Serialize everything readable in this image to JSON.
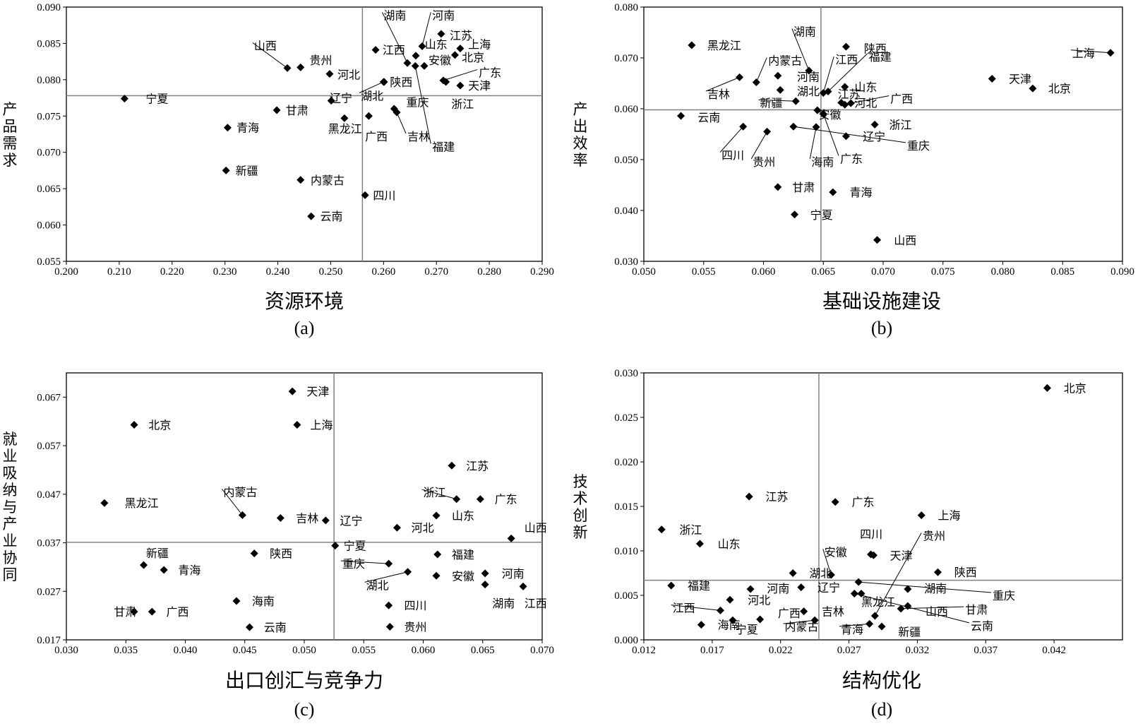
{
  "colors": {
    "marker": "#000000",
    "axis": "#000000",
    "refline": "#808080"
  },
  "chart_data": [
    {
      "id": "a",
      "type": "scatter",
      "caption": "(a)",
      "xlabel": "资源环境",
      "ylabel": "产品需求",
      "xlim": [
        0.2,
        0.29
      ],
      "ylim": [
        0.055,
        0.09
      ],
      "xticks": [
        "0.200",
        "0.210",
        "0.220",
        "0.230",
        "0.240",
        "0.250",
        "0.260",
        "0.270",
        "0.280",
        "0.290"
      ],
      "yticks": [
        "0.055",
        "0.060",
        "0.065",
        "0.070",
        "0.075",
        "0.080",
        "0.085",
        "0.090"
      ],
      "refx": 0.256,
      "refy": 0.0778,
      "points": [
        {
          "label": "宁夏",
          "x": 0.211,
          "y": 0.0774,
          "lx": 0.215,
          "ly": 0.0774
        },
        {
          "label": "山西",
          "x": 0.2418,
          "y": 0.0816,
          "lx": 0.2355,
          "ly": 0.0847
        },
        {
          "label": "贵州",
          "x": 0.2443,
          "y": 0.0817,
          "lx": 0.246,
          "ly": 0.0827
        },
        {
          "label": "河北",
          "x": 0.2498,
          "y": 0.0808,
          "lx": 0.2513,
          "ly": 0.0807
        },
        {
          "label": "甘肃",
          "x": 0.2398,
          "y": 0.0758,
          "lx": 0.2415,
          "ly": 0.0758
        },
        {
          "label": "青海",
          "x": 0.2305,
          "y": 0.0734,
          "lx": 0.2322,
          "ly": 0.0734
        },
        {
          "label": "新疆",
          "x": 0.2302,
          "y": 0.0675,
          "lx": 0.232,
          "ly": 0.0675
        },
        {
          "label": "内蒙古",
          "x": 0.2443,
          "y": 0.0662,
          "lx": 0.2462,
          "ly": 0.0662
        },
        {
          "label": "云南",
          "x": 0.2463,
          "y": 0.0612,
          "lx": 0.248,
          "ly": 0.0612
        },
        {
          "label": "辽宁",
          "x": 0.2501,
          "y": 0.0771,
          "lx": 0.2498,
          "ly": 0.0775
        },
        {
          "label": "黑龙江",
          "x": 0.2526,
          "y": 0.0747,
          "lx": 0.2495,
          "ly": 0.0733
        },
        {
          "label": "四川",
          "x": 0.2565,
          "y": 0.0641,
          "lx": 0.258,
          "ly": 0.0641
        },
        {
          "label": "广西",
          "x": 0.2572,
          "y": 0.075,
          "lx": 0.2565,
          "ly": 0.0722
        },
        {
          "label": "湖北",
          "x": 0.26,
          "y": 0.0797,
          "lx": 0.2557,
          "ly": 0.0778
        },
        {
          "label": "陕西",
          "x": 0.2601,
          "y": 0.0797,
          "lx": 0.2612,
          "ly": 0.0797
        },
        {
          "label": "江西",
          "x": 0.2585,
          "y": 0.0841,
          "lx": 0.2598,
          "ly": 0.0841
        },
        {
          "label": "湖南",
          "x": 0.2645,
          "y": 0.0823,
          "lx": 0.26,
          "ly": 0.0889
        },
        {
          "label": "河南",
          "x": 0.2673,
          "y": 0.0846,
          "lx": 0.2692,
          "ly": 0.0889
        },
        {
          "label": "江苏",
          "x": 0.2709,
          "y": 0.0863,
          "lx": 0.2725,
          "ly": 0.0861
        },
        {
          "label": "山东",
          "x": 0.2661,
          "y": 0.0833,
          "lx": 0.2678,
          "ly": 0.0849
        },
        {
          "label": "安徽",
          "x": 0.2677,
          "y": 0.0819,
          "lx": 0.2685,
          "ly": 0.0827
        },
        {
          "label": "上海",
          "x": 0.2745,
          "y": 0.0843,
          "lx": 0.276,
          "ly": 0.0849
        },
        {
          "label": "北京",
          "x": 0.2735,
          "y": 0.0834,
          "lx": 0.2748,
          "ly": 0.0831
        },
        {
          "label": "广东",
          "x": 0.2713,
          "y": 0.0799,
          "lx": 0.278,
          "ly": 0.081
        },
        {
          "label": "天津",
          "x": 0.2745,
          "y": 0.0792,
          "lx": 0.276,
          "ly": 0.0792
        },
        {
          "label": "重庆",
          "x": 0.262,
          "y": 0.076,
          "lx": 0.2643,
          "ly": 0.0769
        },
        {
          "label": "吉林",
          "x": 0.2625,
          "y": 0.0755,
          "lx": 0.2645,
          "ly": 0.0722
        },
        {
          "label": "浙江",
          "x": 0.2718,
          "y": 0.0797,
          "lx": 0.2728,
          "ly": 0.0767
        },
        {
          "label": "福建",
          "x": 0.266,
          "y": 0.0819,
          "lx": 0.2692,
          "ly": 0.0708
        }
      ]
    },
    {
      "id": "b",
      "type": "scatter",
      "caption": "(b)",
      "xlabel": "基础设施建设",
      "ylabel": "产出效率",
      "xlim": [
        0.05,
        0.09
      ],
      "ylim": [
        0.03,
        0.08
      ],
      "xticks": [
        "0.050",
        "0.055",
        "0.060",
        "0.065",
        "0.070",
        "0.075",
        "0.080",
        "0.085",
        "0.090"
      ],
      "yticks": [
        "0.030",
        "0.040",
        "0.050",
        "0.060",
        "0.070",
        "0.080"
      ],
      "refx": 0.0648,
      "refy": 0.0598,
      "points": [
        {
          "label": "黑龙江",
          "x": 0.054,
          "y": 0.0725,
          "lx": 0.0553,
          "ly": 0.0725
        },
        {
          "label": "上海",
          "x": 0.089,
          "y": 0.071,
          "lx": 0.0858,
          "ly": 0.071
        },
        {
          "label": "天津",
          "x": 0.0791,
          "y": 0.0659,
          "lx": 0.0805,
          "ly": 0.0659
        },
        {
          "label": "北京",
          "x": 0.0825,
          "y": 0.064,
          "lx": 0.0838,
          "ly": 0.064
        },
        {
          "label": "吉林",
          "x": 0.058,
          "y": 0.0662,
          "lx": 0.0553,
          "ly": 0.0629
        },
        {
          "label": "云南",
          "x": 0.0531,
          "y": 0.0586,
          "lx": 0.0545,
          "ly": 0.0583
        },
        {
          "label": "内蒙古",
          "x": 0.0594,
          "y": 0.0652,
          "lx": 0.0604,
          "ly": 0.0695
        },
        {
          "label": "河南",
          "x": 0.0612,
          "y": 0.0665,
          "lx": 0.0628,
          "ly": 0.0663
        },
        {
          "label": "湖北",
          "x": 0.0614,
          "y": 0.0637,
          "lx": 0.0628,
          "ly": 0.0635
        },
        {
          "label": "新疆",
          "x": 0.0627,
          "y": 0.0615,
          "lx": 0.0597,
          "ly": 0.0612
        },
        {
          "label": "湖南",
          "x": 0.0638,
          "y": 0.0675,
          "lx": 0.0625,
          "ly": 0.0752
        },
        {
          "label": "江西",
          "x": 0.065,
          "y": 0.0631,
          "lx": 0.066,
          "ly": 0.0697
        },
        {
          "label": "陕西",
          "x": 0.0669,
          "y": 0.0722,
          "lx": 0.0684,
          "ly": 0.0719
        },
        {
          "label": "福建",
          "x": 0.0654,
          "y": 0.0634,
          "lx": 0.0688,
          "ly": 0.0703
        },
        {
          "label": "山东",
          "x": 0.0668,
          "y": 0.0643,
          "lx": 0.0676,
          "ly": 0.0643
        },
        {
          "label": "江苏",
          "x": 0.0665,
          "y": 0.0612,
          "lx": 0.0662,
          "ly": 0.0629
        },
        {
          "label": "河北",
          "x": 0.0668,
          "y": 0.0608,
          "lx": 0.0676,
          "ly": 0.0612
        },
        {
          "label": "广西",
          "x": 0.0673,
          "y": 0.0611,
          "lx": 0.0706,
          "ly": 0.062
        },
        {
          "label": "安徽",
          "x": 0.0645,
          "y": 0.0597,
          "lx": 0.0646,
          "ly": 0.0589
        },
        {
          "label": "浙江",
          "x": 0.0693,
          "y": 0.0569,
          "lx": 0.0705,
          "ly": 0.0569
        },
        {
          "label": "四川",
          "x": 0.0583,
          "y": 0.0565,
          "lx": 0.0565,
          "ly": 0.0509
        },
        {
          "label": "贵州",
          "x": 0.0603,
          "y": 0.0555,
          "lx": 0.0591,
          "ly": 0.0496
        },
        {
          "label": "重庆",
          "x": 0.0625,
          "y": 0.0565,
          "lx": 0.072,
          "ly": 0.0528
        },
        {
          "label": "海南",
          "x": 0.0644,
          "y": 0.0564,
          "lx": 0.064,
          "ly": 0.0496
        },
        {
          "label": "辽宁",
          "x": 0.0669,
          "y": 0.0546,
          "lx": 0.0683,
          "ly": 0.0546
        },
        {
          "label": "广东",
          "x": 0.065,
          "y": 0.059,
          "lx": 0.0664,
          "ly": 0.0502
        },
        {
          "label": "甘肃",
          "x": 0.0612,
          "y": 0.0446,
          "lx": 0.0624,
          "ly": 0.0446
        },
        {
          "label": "青海",
          "x": 0.0658,
          "y": 0.0436,
          "lx": 0.0672,
          "ly": 0.0436
        },
        {
          "label": "宁夏",
          "x": 0.0626,
          "y": 0.0392,
          "lx": 0.0639,
          "ly": 0.0392
        },
        {
          "label": "山西",
          "x": 0.0695,
          "y": 0.0342,
          "lx": 0.0709,
          "ly": 0.0342
        }
      ]
    },
    {
      "id": "c",
      "type": "scatter",
      "caption": "(c)",
      "xlabel": "出口创汇与竞争力",
      "ylabel": "就业吸纳与产业协同",
      "xlim": [
        0.03,
        0.07
      ],
      "ylim": [
        0.017,
        0.072
      ],
      "xticks": [
        "0.030",
        "0.035",
        "0.040",
        "0.045",
        "0.050",
        "0.055",
        "0.060",
        "0.065",
        "0.070"
      ],
      "yticks": [
        "0.017",
        "0.027",
        "0.037",
        "0.047",
        "0.057",
        "0.067"
      ],
      "refx": 0.0525,
      "refy": 0.0371,
      "points": [
        {
          "label": "天津",
          "x": 0.049,
          "y": 0.0682,
          "lx": 0.0502,
          "ly": 0.0682
        },
        {
          "label": "北京",
          "x": 0.0357,
          "y": 0.0613,
          "lx": 0.0369,
          "ly": 0.0613
        },
        {
          "label": "上海",
          "x": 0.0494,
          "y": 0.0613,
          "lx": 0.0505,
          "ly": 0.0613
        },
        {
          "label": "江苏",
          "x": 0.0624,
          "y": 0.0529,
          "lx": 0.0636,
          "ly": 0.0529
        },
        {
          "label": "浙江",
          "x": 0.0628,
          "y": 0.046,
          "lx": 0.06,
          "ly": 0.0474
        },
        {
          "label": "广东",
          "x": 0.0648,
          "y": 0.046,
          "lx": 0.066,
          "ly": 0.046
        },
        {
          "label": "黑龙江",
          "x": 0.0332,
          "y": 0.0452,
          "lx": 0.0349,
          "ly": 0.0452
        },
        {
          "label": "内蒙古",
          "x": 0.0448,
          "y": 0.0427,
          "lx": 0.0432,
          "ly": 0.0475
        },
        {
          "label": "吉林",
          "x": 0.048,
          "y": 0.0421,
          "lx": 0.0493,
          "ly": 0.0421
        },
        {
          "label": "辽宁",
          "x": 0.0518,
          "y": 0.0416,
          "lx": 0.053,
          "ly": 0.0416
        },
        {
          "label": "山东",
          "x": 0.0611,
          "y": 0.0426,
          "lx": 0.0624,
          "ly": 0.0426
        },
        {
          "label": "河北",
          "x": 0.0578,
          "y": 0.0401,
          "lx": 0.059,
          "ly": 0.0401
        },
        {
          "label": "山西",
          "x": 0.0674,
          "y": 0.0379,
          "lx": 0.0685,
          "ly": 0.0401
        },
        {
          "label": "宁夏",
          "x": 0.0526,
          "y": 0.0364,
          "lx": 0.0533,
          "ly": 0.0364
        },
        {
          "label": "新疆",
          "x": 0.0365,
          "y": 0.0324,
          "lx": 0.0367,
          "ly": 0.0349
        },
        {
          "label": "青海",
          "x": 0.0382,
          "y": 0.0314,
          "lx": 0.0394,
          "ly": 0.0314
        },
        {
          "label": "陕西",
          "x": 0.0458,
          "y": 0.0348,
          "lx": 0.0471,
          "ly": 0.0348
        },
        {
          "label": "重庆",
          "x": 0.0571,
          "y": 0.0327,
          "lx": 0.0532,
          "ly": 0.0327
        },
        {
          "label": "湖北",
          "x": 0.0587,
          "y": 0.031,
          "lx": 0.0552,
          "ly": 0.0283
        },
        {
          "label": "福建",
          "x": 0.0612,
          "y": 0.0346,
          "lx": 0.0624,
          "ly": 0.0346
        },
        {
          "label": "安徽",
          "x": 0.0611,
          "y": 0.0302,
          "lx": 0.0624,
          "ly": 0.0302
        },
        {
          "label": "河南",
          "x": 0.0652,
          "y": 0.0307,
          "lx": 0.0666,
          "ly": 0.0307
        },
        {
          "label": "湖南",
          "x": 0.0652,
          "y": 0.0284,
          "lx": 0.0658,
          "ly": 0.0246
        },
        {
          "label": "江西",
          "x": 0.0684,
          "y": 0.028,
          "lx": 0.0685,
          "ly": 0.0246
        },
        {
          "label": "海南",
          "x": 0.0443,
          "y": 0.025,
          "lx": 0.0456,
          "ly": 0.025
        },
        {
          "label": "四川",
          "x": 0.0571,
          "y": 0.0241,
          "lx": 0.0584,
          "ly": 0.0241
        },
        {
          "label": "甘肃",
          "x": 0.0357,
          "y": 0.0228,
          "lx": 0.034,
          "ly": 0.0228
        },
        {
          "label": "广西",
          "x": 0.0372,
          "y": 0.0228,
          "lx": 0.0384,
          "ly": 0.0228
        },
        {
          "label": "云南",
          "x": 0.0454,
          "y": 0.0196,
          "lx": 0.0466,
          "ly": 0.0196
        },
        {
          "label": "贵州",
          "x": 0.0572,
          "y": 0.0197,
          "lx": 0.0584,
          "ly": 0.0197
        }
      ]
    },
    {
      "id": "d",
      "type": "scatter",
      "caption": "(d)",
      "xlabel": "结构优化",
      "ylabel": "技术创新",
      "xlim": [
        0.012,
        0.047
      ],
      "ylim": [
        0,
        0.03
      ],
      "xticks": [
        "0.012",
        "0.017",
        "0.022",
        "0.027",
        "0.032",
        "0.037",
        "0.042"
      ],
      "yticks": [
        "0.000",
        "0.005",
        "0.010",
        "0.015",
        "0.020",
        "0.025",
        "0.030"
      ],
      "refx": 0.0248,
      "refy": 0.0067,
      "points": [
        {
          "label": "北京",
          "x": 0.0415,
          "y": 0.0283,
          "lx": 0.0427,
          "ly": 0.0283
        },
        {
          "label": "江苏",
          "x": 0.0197,
          "y": 0.0161,
          "lx": 0.0209,
          "ly": 0.0161
        },
        {
          "label": "广东",
          "x": 0.026,
          "y": 0.0155,
          "lx": 0.0272,
          "ly": 0.0155
        },
        {
          "label": "上海",
          "x": 0.0323,
          "y": 0.014,
          "lx": 0.0335,
          "ly": 0.014
        },
        {
          "label": "浙江",
          "x": 0.0133,
          "y": 0.0124,
          "lx": 0.0146,
          "ly": 0.0124
        },
        {
          "label": "山东",
          "x": 0.0161,
          "y": 0.0108,
          "lx": 0.0174,
          "ly": 0.0108
        },
        {
          "label": "四川",
          "x": 0.0286,
          "y": 0.0096,
          "lx": 0.0278,
          "ly": 0.0119
        },
        {
          "label": "贵州",
          "x": 0.0289,
          "y": 0.0027,
          "lx": 0.0324,
          "ly": 0.0117
        },
        {
          "label": "安徽",
          "x": 0.0257,
          "y": 0.0073,
          "lx": 0.0252,
          "ly": 0.0099
        },
        {
          "label": "天津",
          "x": 0.0288,
          "y": 0.0095,
          "lx": 0.03,
          "ly": 0.0095
        },
        {
          "label": "陕西",
          "x": 0.0335,
          "y": 0.0076,
          "lx": 0.0347,
          "ly": 0.0076
        },
        {
          "label": "湖北",
          "x": 0.0229,
          "y": 0.0075,
          "lx": 0.0241,
          "ly": 0.0075
        },
        {
          "label": "福建",
          "x": 0.014,
          "y": 0.0061,
          "lx": 0.0152,
          "ly": 0.0061
        },
        {
          "label": "河南",
          "x": 0.0198,
          "y": 0.0057,
          "lx": 0.021,
          "ly": 0.0058
        },
        {
          "label": "辽宁",
          "x": 0.0235,
          "y": 0.0059,
          "lx": 0.0247,
          "ly": 0.0059
        },
        {
          "label": "湖南",
          "x": 0.0313,
          "y": 0.0057,
          "lx": 0.0325,
          "ly": 0.0058
        },
        {
          "label": "重庆",
          "x": 0.0277,
          "y": 0.0065,
          "lx": 0.0375,
          "ly": 0.005
        },
        {
          "label": "河北",
          "x": 0.0183,
          "y": 0.0045,
          "lx": 0.0196,
          "ly": 0.0045
        },
        {
          "label": "黑龙江",
          "x": 0.0279,
          "y": 0.0052,
          "lx": 0.0279,
          "ly": 0.0043
        },
        {
          "label": "江西",
          "x": 0.0176,
          "y": 0.0033,
          "lx": 0.0141,
          "ly": 0.0036
        },
        {
          "label": "吉林",
          "x": 0.0237,
          "y": 0.0032,
          "lx": 0.025,
          "ly": 0.0032
        },
        {
          "label": "山西",
          "x": 0.0313,
          "y": 0.0038,
          "lx": 0.0326,
          "ly": 0.0032
        },
        {
          "label": "甘肃",
          "x": 0.0308,
          "y": 0.0035,
          "lx": 0.0355,
          "ly": 0.0034
        },
        {
          "label": "广西",
          "x": 0.0205,
          "y": 0.0023,
          "lx": 0.0218,
          "ly": 0.003
        },
        {
          "label": "海南",
          "x": 0.0162,
          "y": 0.0017,
          "lx": 0.0174,
          "ly": 0.0017
        },
        {
          "label": "宁夏",
          "x": 0.0185,
          "y": 0.0022,
          "lx": 0.0187,
          "ly": 0.0012
        },
        {
          "label": "内蒙古",
          "x": 0.0245,
          "y": 0.0022,
          "lx": 0.0223,
          "ly": 0.0015
        },
        {
          "label": "青海",
          "x": 0.0285,
          "y": 0.0018,
          "lx": 0.0264,
          "ly": 0.0012
        },
        {
          "label": "新疆",
          "x": 0.0294,
          "y": 0.0015,
          "lx": 0.0306,
          "ly": 0.0009
        },
        {
          "label": "云南",
          "x": 0.0274,
          "y": 0.0052,
          "lx": 0.0359,
          "ly": 0.0016
        }
      ]
    }
  ]
}
